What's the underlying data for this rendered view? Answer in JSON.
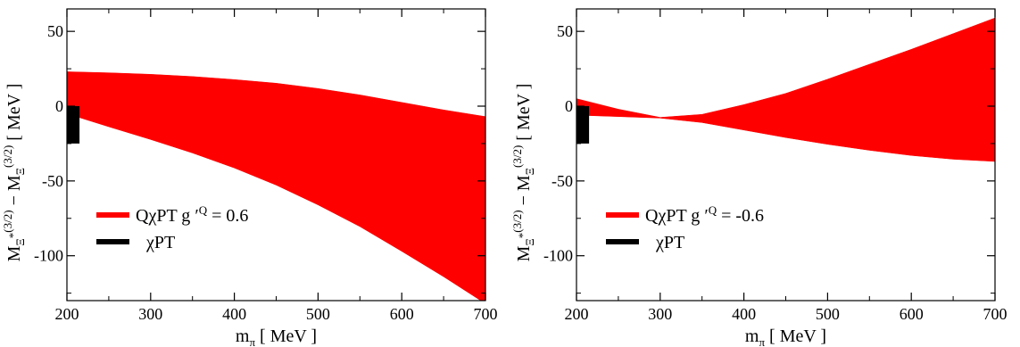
{
  "chart_data": [
    {
      "type": "area",
      "xlabel": "m",
      "xlabel_sub": "π",
      "xlabel_unit": " [ MeV ]",
      "ylabel_parts": {
        "m1": "M",
        "m1_sub": "Ξ",
        "m1_sub_sup": "*",
        "m1_sup": "(3/2)",
        "minus": " − ",
        "m2": "M",
        "m2_sub": "Ξ",
        "m2_sup": "(3/2)",
        "unit": " [ MeV ]"
      },
      "xlim": [
        200,
        700
      ],
      "ylim": [
        -130,
        65
      ],
      "xticks": [
        200,
        300,
        400,
        500,
        600,
        700
      ],
      "yticks": [
        -100,
        -50,
        0,
        50
      ],
      "ytick_labels": [
        "-100",
        "-50",
        "0",
        "50"
      ],
      "series": [
        {
          "name": "QχPT g′Q = 0.6",
          "legend_text": "QχPT g",
          "legend_prime": "′",
          "legend_sup": "Q",
          "legend_value": "=  0.6",
          "color": "#ff0000",
          "x": [
            200,
            250,
            300,
            350,
            400,
            450,
            500,
            550,
            600,
            650,
            700
          ],
          "upper": [
            23,
            22.3,
            21.3,
            19.8,
            17.8,
            15.3,
            11.8,
            7.5,
            2.5,
            -2.5,
            -7
          ],
          "lower": [
            -5,
            -13.8,
            -22.3,
            -31.3,
            -41.3,
            -52.8,
            -66,
            -80.5,
            -97,
            -114,
            -132
          ]
        },
        {
          "name": "χPT",
          "color": "#000000",
          "x_range": [
            200,
            215
          ],
          "y_range": [
            -25,
            0
          ]
        }
      ],
      "legend_position": "lower-left"
    },
    {
      "type": "area",
      "xlabel": "m",
      "xlabel_sub": "π",
      "xlabel_unit": " [ MeV ]",
      "ylabel_parts": {
        "m1": "M",
        "m1_sub": "Ξ",
        "m1_sub_sup": "*",
        "m1_sup": "(3/2)",
        "minus": " − ",
        "m2": "M",
        "m2_sub": "Ξ",
        "m2_sup": "(3/2)",
        "unit": " [ MeV ]"
      },
      "xlim": [
        200,
        700
      ],
      "ylim": [
        -130,
        65
      ],
      "xticks": [
        200,
        300,
        400,
        500,
        600,
        700
      ],
      "yticks": [
        -100,
        -50,
        0,
        50
      ],
      "ytick_labels": [
        "-100",
        "-50",
        "0",
        "50"
      ],
      "series": [
        {
          "name": "QχPT g′Q = -0.6",
          "legend_text": "QχPT g",
          "legend_prime": "′",
          "legend_sup": "Q",
          "legend_value": "= -0.6",
          "color": "#ff0000",
          "x": [
            200,
            250,
            300,
            350,
            400,
            450,
            500,
            550,
            600,
            650,
            700
          ],
          "upper": [
            5,
            -2,
            -7.5,
            -5.5,
            1,
            8.5,
            18,
            28,
            38,
            48.5,
            59
          ],
          "lower": [
            -6,
            -7,
            -8,
            -11,
            -16,
            -21,
            -25.5,
            -29.5,
            -33,
            -35.5,
            -37
          ]
        },
        {
          "name": "χPT",
          "color": "#000000",
          "x_range": [
            200,
            215
          ],
          "y_range": [
            -25,
            0
          ]
        }
      ],
      "legend_position": "lower-left"
    }
  ]
}
